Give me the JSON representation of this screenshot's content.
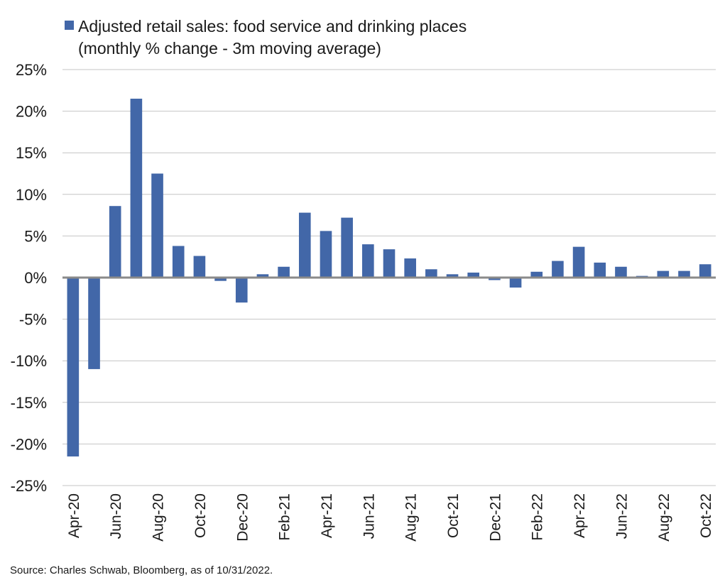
{
  "colors": {
    "bar": "#4267a8",
    "grid": "#c4c4c4",
    "zero_line": "#8a8a8a",
    "text": "#1a1a1a"
  },
  "chart_data": {
    "type": "bar",
    "title": "",
    "legend": {
      "position": "top-left",
      "entries": [
        {
          "line1": "Adjusted retail sales: food service and drinking places",
          "line2": "(monthly % change - 3m moving average)"
        }
      ]
    },
    "xlabel": "",
    "ylabel": "",
    "ylim": [
      -25,
      25
    ],
    "y_ticks": [
      25,
      20,
      15,
      10,
      5,
      0,
      -5,
      -10,
      -15,
      -20,
      -25
    ],
    "y_tick_labels": [
      "25%",
      "20%",
      "15%",
      "10%",
      "5%",
      "0%",
      "-5%",
      "-10%",
      "-15%",
      "-20%",
      "-25%"
    ],
    "grid": true,
    "categories": [
      "Apr-20",
      "May-20",
      "Jun-20",
      "Jul-20",
      "Aug-20",
      "Sep-20",
      "Oct-20",
      "Nov-20",
      "Dec-20",
      "Jan-21",
      "Feb-21",
      "Mar-21",
      "Apr-21",
      "May-21",
      "Jun-21",
      "Jul-21",
      "Aug-21",
      "Sep-21",
      "Oct-21",
      "Nov-21",
      "Dec-21",
      "Jan-22",
      "Feb-22",
      "Mar-22",
      "Apr-22",
      "May-22",
      "Jun-22",
      "Jul-22",
      "Aug-22",
      "Sep-22",
      "Oct-22"
    ],
    "x_tick_labels": [
      "Apr-20",
      "",
      "Jun-20",
      "",
      "Aug-20",
      "",
      "Oct-20",
      "",
      "Dec-20",
      "",
      "Feb-21",
      "",
      "Apr-21",
      "",
      "Jun-21",
      "",
      "Aug-21",
      "",
      "Oct-21",
      "",
      "Dec-21",
      "",
      "Feb-22",
      "",
      "Apr-22",
      "",
      "Jun-22",
      "",
      "Aug-22",
      "",
      "Oct-22"
    ],
    "series": [
      {
        "name": "Adjusted retail sales: food service and drinking places (monthly % change - 3m moving average)",
        "values": [
          -21.5,
          -11.0,
          8.6,
          21.5,
          12.5,
          3.8,
          2.6,
          -0.4,
          -3.0,
          0.4,
          1.3,
          7.8,
          5.6,
          7.2,
          4.0,
          3.4,
          2.3,
          1.0,
          0.4,
          0.6,
          -0.3,
          -1.2,
          0.7,
          2.0,
          3.7,
          1.8,
          1.3,
          0.2,
          0.8,
          0.8,
          1.6
        ]
      }
    ]
  },
  "source": "Source: Charles Schwab, Bloomberg, as of 10/31/2022."
}
